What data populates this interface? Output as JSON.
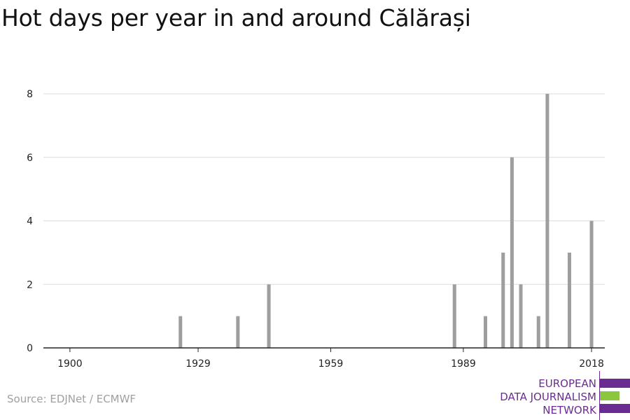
{
  "title": "Hot days per year in and around Călărași",
  "source": "Source: EDJNet / ECMWF",
  "logo": {
    "lines": [
      "EUROPEAN",
      "DATA JOURNALISM",
      "NETWORK"
    ],
    "colors": {
      "purple": "#6b2c91",
      "green": "#8cc63f"
    }
  },
  "chart_data": {
    "type": "bar",
    "title": "Hot days per year in and around Călărași",
    "xlabel": "",
    "ylabel": "",
    "xlim": [
      1894,
      2021
    ],
    "ylim": [
      0,
      8
    ],
    "x_ticks": [
      1900,
      1929,
      1959,
      1989,
      2018
    ],
    "y_ticks": [
      0,
      2,
      4,
      6,
      8
    ],
    "grid": true,
    "bar_color": "#9e9e9e",
    "x": [
      1900,
      1901,
      1902,
      1903,
      1904,
      1905,
      1906,
      1907,
      1908,
      1909,
      1910,
      1911,
      1912,
      1913,
      1914,
      1915,
      1916,
      1917,
      1918,
      1919,
      1920,
      1921,
      1922,
      1923,
      1924,
      1925,
      1926,
      1927,
      1928,
      1929,
      1930,
      1931,
      1932,
      1933,
      1934,
      1935,
      1936,
      1937,
      1938,
      1939,
      1940,
      1941,
      1942,
      1943,
      1944,
      1945,
      1946,
      1947,
      1948,
      1949,
      1950,
      1951,
      1952,
      1953,
      1954,
      1955,
      1956,
      1957,
      1958,
      1959,
      1960,
      1961,
      1962,
      1963,
      1964,
      1965,
      1966,
      1967,
      1968,
      1969,
      1970,
      1971,
      1972,
      1973,
      1974,
      1975,
      1976,
      1977,
      1978,
      1979,
      1980,
      1981,
      1982,
      1983,
      1984,
      1985,
      1986,
      1987,
      1988,
      1989,
      1990,
      1991,
      1992,
      1993,
      1994,
      1995,
      1996,
      1997,
      1998,
      1999,
      2000,
      2001,
      2002,
      2003,
      2004,
      2005,
      2006,
      2007,
      2008,
      2009,
      2010,
      2011,
      2012,
      2013,
      2014,
      2015,
      2016,
      2017,
      2018
    ],
    "values": [
      0,
      0,
      0,
      0,
      0,
      0,
      0,
      0,
      0,
      0,
      0,
      0,
      0,
      0,
      0,
      0,
      0,
      0,
      0,
      0,
      0,
      0,
      0,
      0,
      0,
      1,
      0,
      0,
      0,
      0,
      0,
      0,
      0,
      0,
      0,
      0,
      0,
      0,
      1,
      0,
      0,
      0,
      0,
      0,
      0,
      2,
      0,
      0,
      0,
      0,
      0,
      0,
      0,
      0,
      0,
      0,
      0,
      0,
      0,
      0,
      0,
      0,
      0,
      0,
      0,
      0,
      0,
      0,
      0,
      0,
      0,
      0,
      0,
      0,
      0,
      0,
      0,
      0,
      0,
      0,
      0,
      0,
      0,
      0,
      0,
      0,
      0,
      2,
      0,
      0,
      0,
      0,
      0,
      0,
      1,
      0,
      0,
      0,
      3,
      0,
      6,
      0,
      2,
      0,
      0,
      0,
      1,
      0,
      8,
      0,
      0,
      0,
      0,
      3,
      0,
      0,
      0,
      0,
      4
    ]
  }
}
